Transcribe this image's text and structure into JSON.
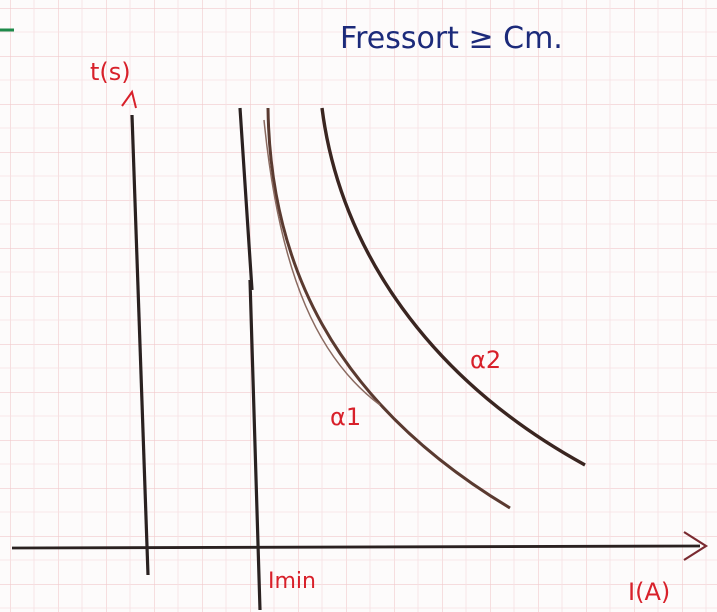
{
  "title": "Fressort ≥ Cm.",
  "axes": {
    "y_label": "t(s)",
    "x_label": "I(A)"
  },
  "annotations": {
    "imin": "Imin"
  },
  "curves": [
    {
      "label": "α1"
    },
    {
      "label": "α2"
    }
  ]
}
